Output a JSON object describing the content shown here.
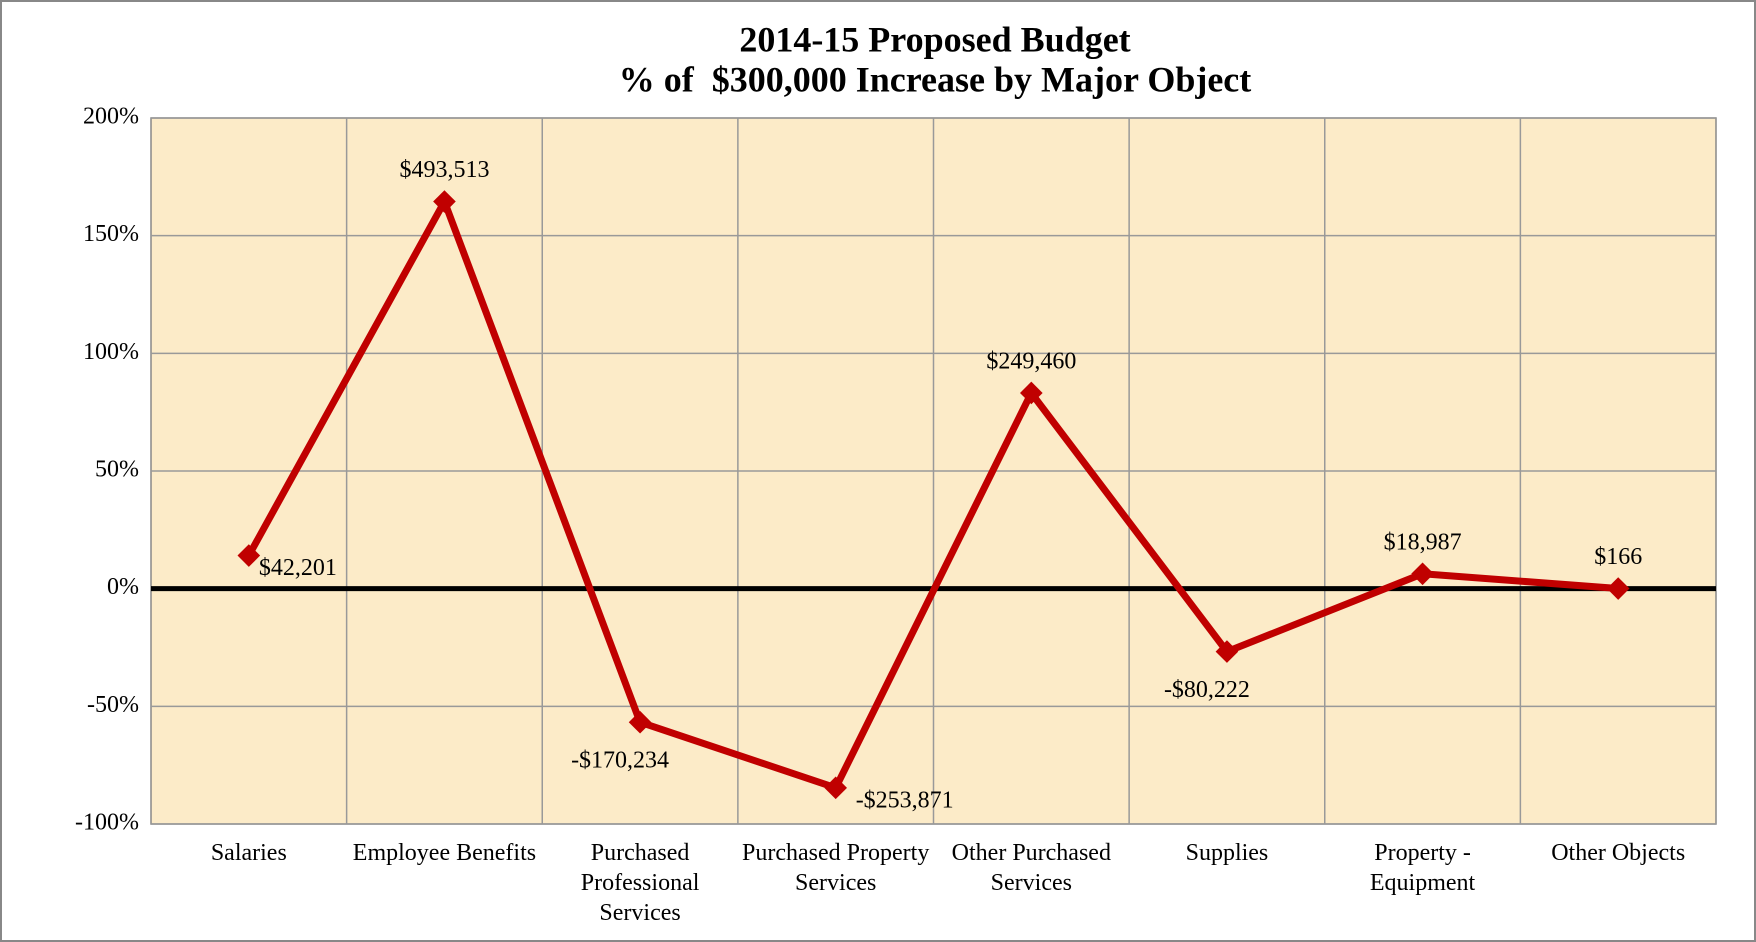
{
  "chart_data": {
    "type": "line",
    "title": "2014-15 Proposed Budget",
    "subtitle": "% of  $300,000 Increase by Major Object",
    "categories": [
      "Salaries",
      "Employee Benefits",
      "Purchased Professional Services",
      "Purchased Property Services",
      "Other Purchased Services",
      "Supplies",
      "Property - Equipment",
      "Other Objects"
    ],
    "series": [
      {
        "name": "% of $300,000 Increase",
        "color": "#c00000",
        "values": [
          14.067,
          164.504,
          -56.745,
          -84.624,
          83.153,
          -26.741,
          6.329,
          0.055
        ],
        "value_labels": [
          "$42,201",
          "$493,513",
          "-$170,234",
          "-$253,871",
          "$249,460",
          "-$80,222",
          "$18,987",
          "$166"
        ]
      }
    ],
    "ylim": [
      -100,
      200
    ],
    "yticks": [
      {
        "value": -100,
        "label": "-100%"
      },
      {
        "value": -50,
        "label": "-50%"
      },
      {
        "value": 0,
        "label": "0%"
      },
      {
        "value": 50,
        "label": "50%"
      },
      {
        "value": 100,
        "label": "100%"
      },
      {
        "value": 150,
        "label": "150%"
      },
      {
        "value": 200,
        "label": "200%"
      }
    ],
    "grid": true
  }
}
